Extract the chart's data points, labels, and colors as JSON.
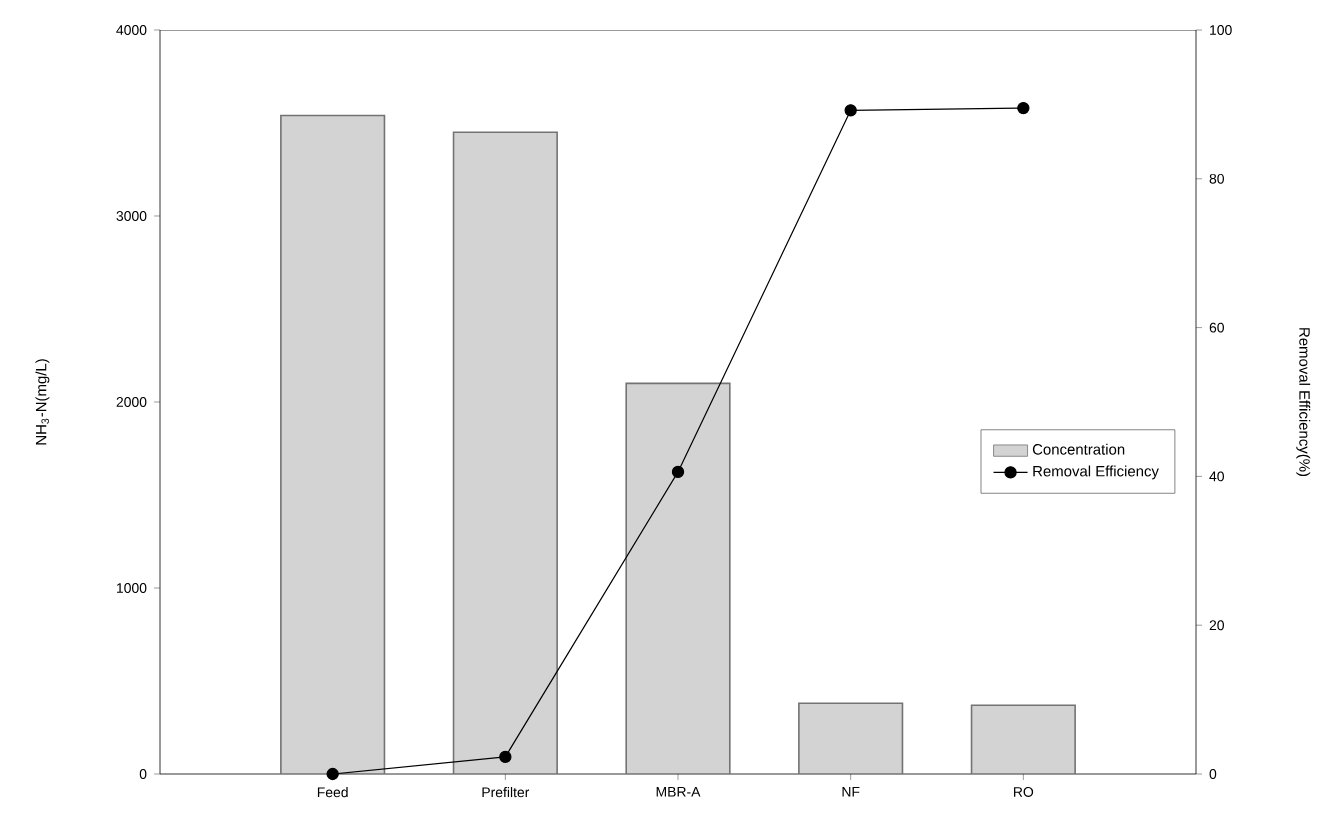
{
  "chart_data": {
    "type": "bar",
    "categories": [
      "Feed",
      "Prefilter",
      "MBR-A",
      "NF",
      "RO"
    ],
    "series": [
      {
        "name": "Concentration",
        "color": "#d3d3d3",
        "values": [
          3540,
          3450,
          2100,
          380,
          370
        ]
      },
      {
        "name": "Removal Efficiency",
        "type": "line",
        "axis": "y2",
        "color": "#000000",
        "marker": "circle",
        "values": [
          0,
          2.3,
          40.6,
          89.2,
          89.5
        ]
      }
    ],
    "ylabel": "NH$_{3}$-N(mg/L)",
    "y2label": "Removal Efficiency(%)",
    "ylim": [
      0,
      4000
    ],
    "yticks": [
      0,
      1000,
      2000,
      3000,
      4000
    ],
    "y2lim": [
      0,
      100
    ],
    "y2ticks": [
      0,
      20,
      40,
      60,
      80,
      100
    ],
    "legend": "right",
    "grid": false
  }
}
